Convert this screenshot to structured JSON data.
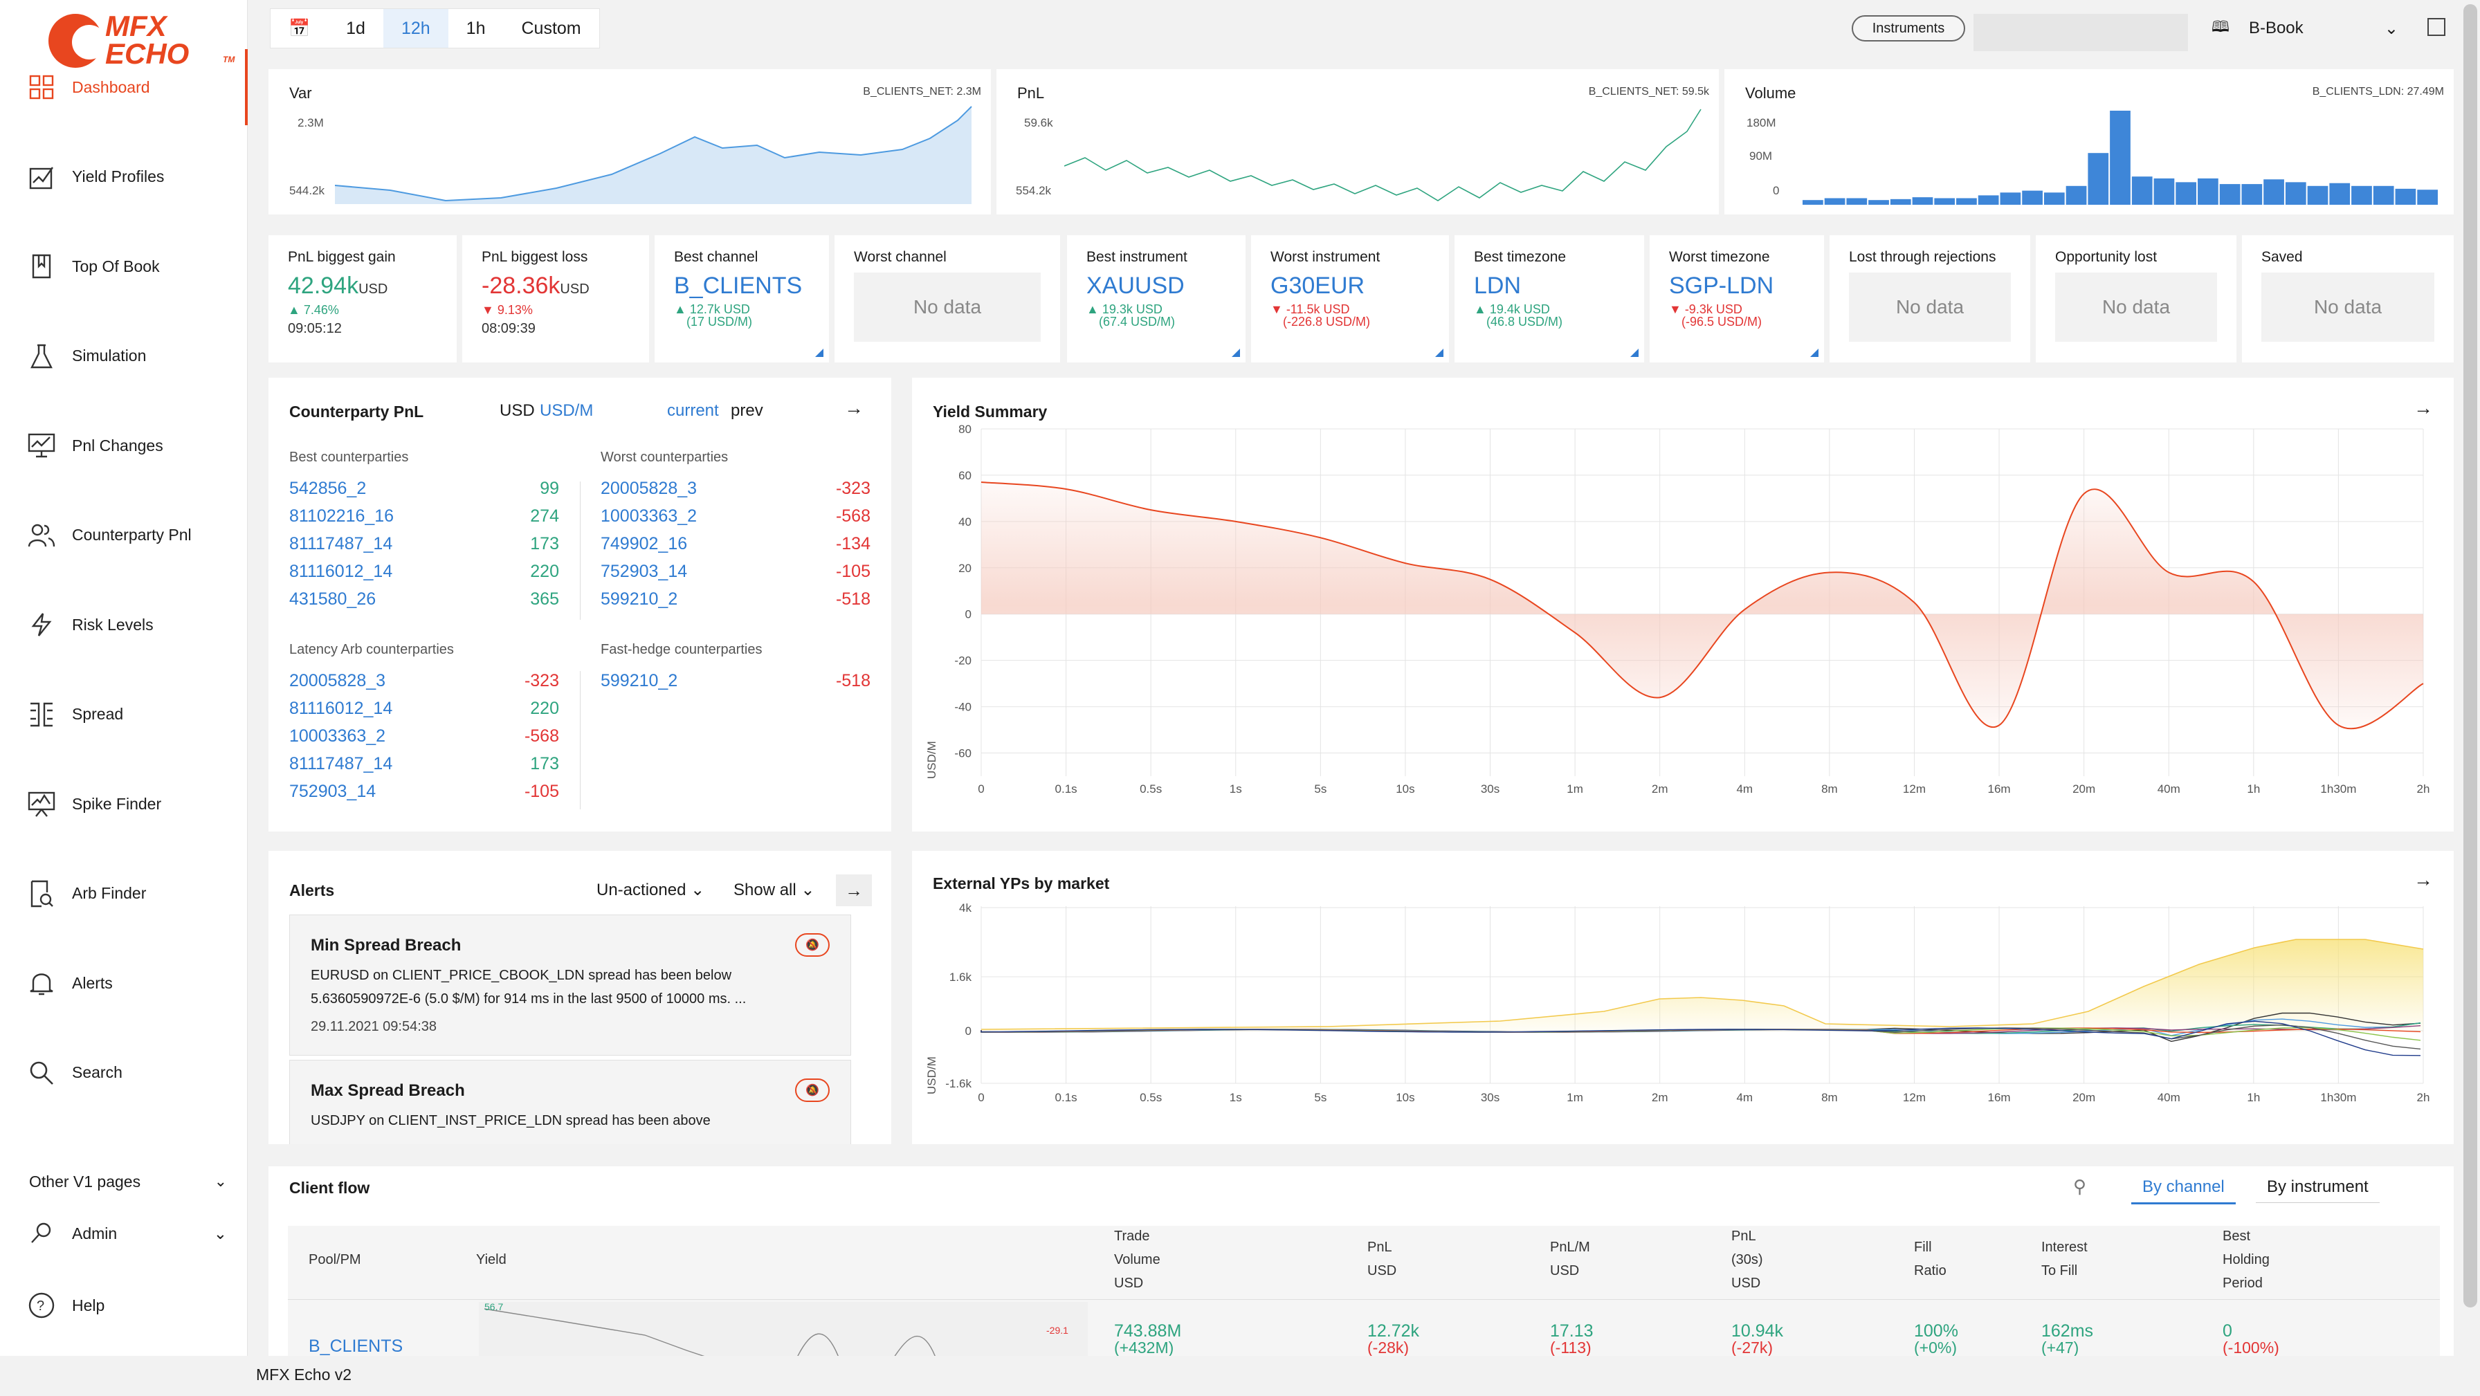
{
  "app": {
    "footer": "MFX Echo v2",
    "logo_line1": "MFX",
    "logo_line2": "ECHO",
    "logo_tm": "TM"
  },
  "nav": {
    "items": [
      {
        "label": "Dashboard",
        "icon": "dashboard-icon",
        "active": true
      },
      {
        "label": "Yield Profiles",
        "icon": "yield-profiles-icon"
      },
      {
        "label": "Top Of Book",
        "icon": "book-icon"
      },
      {
        "label": "Simulation",
        "icon": "flask-icon"
      },
      {
        "label": "Pnl Changes",
        "icon": "chart-icon"
      },
      {
        "label": "Counterparty Pnl",
        "icon": "users-icon"
      },
      {
        "label": "Risk Levels",
        "icon": "bolt-icon"
      },
      {
        "label": "Spread",
        "icon": "spread-icon"
      },
      {
        "label": "Spike Finder",
        "icon": "spike-icon"
      },
      {
        "label": "Arb Finder",
        "icon": "arb-icon"
      },
      {
        "label": "Alerts",
        "icon": "bell-icon"
      },
      {
        "label": "Search",
        "icon": "search-icon"
      }
    ],
    "other": "Other V1 pages",
    "admin": "Admin",
    "help": "Help",
    "collapse": "<"
  },
  "topbar": {
    "ranges": [
      "1d",
      "12h",
      "1h",
      "Custom"
    ],
    "selected": "12h",
    "instruments": "Instruments",
    "book": "B-Book"
  },
  "var": {
    "title": "Var",
    "note": "B_CLIENTS_NET: 2.3M",
    "ticks": [
      "2.3M",
      "544.2k"
    ]
  },
  "pnl": {
    "title": "PnL",
    "note": "B_CLIENTS_NET: 59.5k",
    "ticks": [
      "59.6k",
      "554.2k"
    ]
  },
  "volume": {
    "title": "Volume",
    "note": "B_CLIENTS_LDN: 27.49M",
    "ticks": [
      "180M",
      "90M",
      "0"
    ],
    "bars": [
      0.05,
      0.07,
      0.07,
      0.05,
      0.06,
      0.08,
      0.07,
      0.07,
      0.1,
      0.13,
      0.15,
      0.13,
      0.2,
      0.55,
      1.0,
      0.3,
      0.28,
      0.24,
      0.28,
      0.22,
      0.22,
      0.27,
      0.24,
      0.2,
      0.23,
      0.2,
      0.2,
      0.17,
      0.16
    ]
  },
  "kpis": [
    {
      "label": "PnL biggest gain",
      "value": "42.94k",
      "unit": "USD",
      "sub": "▲ 7.46%",
      "time": "09:05:12",
      "tone": "green"
    },
    {
      "label": "PnL biggest loss",
      "value": "-28.36k",
      "unit": "USD",
      "sub": "▼ 9.13%",
      "time": "08:09:39",
      "tone": "red"
    },
    {
      "label": "Best channel",
      "value": "B_CLIENTS",
      "sub1": "▲ 12.7k USD",
      "sub2": "(17 USD/M)",
      "tone": "blue",
      "subtone": "green"
    },
    {
      "label": "Worst channel",
      "nodata": "No data"
    },
    {
      "label": "Best instrument",
      "value": "XAUUSD",
      "sub1": "▲ 19.3k USD",
      "sub2": "(67.4 USD/M)",
      "tone": "blue",
      "subtone": "green"
    },
    {
      "label": "Worst instrument",
      "value": "G30EUR",
      "sub1": "▼ -11.5k USD",
      "sub2": "(-226.8 USD/M)",
      "tone": "blue",
      "subtone": "red"
    },
    {
      "label": "Best timezone",
      "value": "LDN",
      "sub1": "▲ 19.4k USD",
      "sub2": "(46.8 USD/M)",
      "tone": "blue",
      "subtone": "green"
    },
    {
      "label": "Worst timezone",
      "value": "SGP-LDN",
      "sub1": "▼ -9.3k USD",
      "sub2": "(-96.5 USD/M)",
      "tone": "blue",
      "subtone": "red"
    },
    {
      "label": "Lost through rejections",
      "nodata": "No data"
    },
    {
      "label": "Opportunity lost",
      "nodata": "No data"
    },
    {
      "label": "Saved",
      "nodata": "No data"
    }
  ],
  "counterparty": {
    "title": "Counterparty PnL",
    "unit_a": "USD",
    "unit_b": "USD/M",
    "period_a": "current",
    "period_b": "prev",
    "best_head": "Best counterparties",
    "worst_head": "Worst counterparties",
    "latency_head": "Latency Arb counterparties",
    "fasthedge_head": "Fast-hedge counterparties",
    "best": [
      [
        "542856_2",
        "99"
      ],
      [
        "81102216_16",
        "274"
      ],
      [
        "81117487_14",
        "173"
      ],
      [
        "81116012_14",
        "220"
      ],
      [
        "431580_26",
        "365"
      ]
    ],
    "worst": [
      [
        "20005828_3",
        "-323"
      ],
      [
        "10003363_2",
        "-568"
      ],
      [
        "749902_16",
        "-134"
      ],
      [
        "752903_14",
        "-105"
      ],
      [
        "599210_2",
        "-518"
      ]
    ],
    "latency": [
      [
        "20005828_3",
        "-323"
      ],
      [
        "81116012_14",
        "220"
      ],
      [
        "10003363_2",
        "-568"
      ],
      [
        "81117487_14",
        "173"
      ],
      [
        "752903_14",
        "-105"
      ]
    ],
    "fasthedge": [
      [
        "599210_2",
        "-518"
      ]
    ]
  },
  "alerts": {
    "title": "Alerts",
    "filter1": "Un-actioned",
    "filter2": "Show all",
    "items": [
      {
        "title": "Min Spread Breach",
        "desc": "EURUSD on CLIENT_PRICE_CBOOK_LDN spread has been below 5.6360590972E-6 (5.0 $/M) for 914 ms  in the last 9500 of 10000 ms. ...",
        "time": "29.11.2021 09:54:38"
      },
      {
        "title": "Max Spread Breach",
        "desc": "USDJPY on CLIENT_INST_PRICE_LDN spread has been above",
        "time": ""
      }
    ]
  },
  "x_ticks": [
    "0",
    "0.1s",
    "0.5s",
    "1s",
    "5s",
    "10s",
    "30s",
    "1m",
    "2m",
    "4m",
    "8m",
    "12m",
    "16m",
    "20m",
    "40m",
    "1h",
    "1h30m",
    "2h"
  ],
  "yield_summary": {
    "title": "Yield Summary",
    "ylabel": "USD/M",
    "y_ticks": [
      "80",
      "60",
      "40",
      "20",
      "0",
      "-20",
      "-40",
      "-60"
    ]
  },
  "external": {
    "title": "External YPs by market",
    "ylabel": "USD/M",
    "y_ticks": [
      "4k",
      "1.6k",
      "0",
      "-1.6k"
    ]
  },
  "client_flow": {
    "title": "Client flow",
    "tab_a": "By channel",
    "tab_b": "By instrument",
    "headers": [
      "Pool/PM",
      "Yield",
      "Trade\nVolume\nUSD",
      "PnL\nUSD",
      "PnL/M\nUSD",
      "PnL\n(30s)\nUSD",
      "Fill\nRatio",
      "Interest\nTo Fill",
      "Best\nHolding\nPeriod"
    ],
    "row": {
      "pool": "B_CLIENTS",
      "yield_hi": "56.7",
      "yield_lo": "-29.1",
      "volume": "743.88M",
      "volume_d": "(+432M)",
      "pnl": "12.72k",
      "pnl_d": "(-28k)",
      "pnlm": "17.13",
      "pnlm_d": "(-113)",
      "pnl30": "10.94k",
      "pnl30_d": "(-27k)",
      "fill": "100%",
      "fill_d": "(+0%)",
      "itf": "162ms",
      "itf_d": "(+47)",
      "bhp": "0",
      "bhp_d": "(-100%)"
    }
  },
  "chart_data": [
    {
      "type": "area",
      "title": "Yield Summary",
      "ylabel": "USD/M",
      "categories": [
        "0",
        "0.1s",
        "0.5s",
        "1s",
        "5s",
        "10s",
        "30s",
        "1m",
        "2m",
        "4m",
        "8m",
        "12m",
        "16m",
        "20m",
        "40m",
        "1h",
        "1h30m",
        "2h"
      ],
      "series": [
        {
          "values": [
            57,
            54,
            45,
            40,
            33,
            22,
            15,
            -8,
            -36,
            2,
            18,
            5,
            -48,
            52,
            18,
            14,
            -48,
            -30
          ]
        }
      ],
      "ylim": [
        -70,
        80
      ]
    }
  ]
}
